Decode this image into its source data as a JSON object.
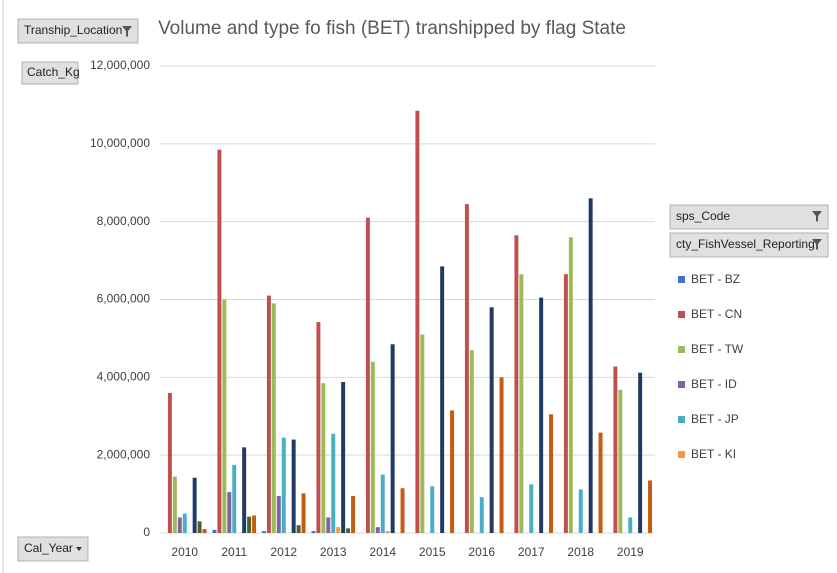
{
  "chart_data": {
    "type": "bar",
    "title": "Volume and type fo fish (BET) transhipped by flag State",
    "categories": [
      "2010",
      "2011",
      "2012",
      "2013",
      "2014",
      "2015",
      "2016",
      "2017",
      "2018",
      "2019"
    ],
    "series": [
      {
        "name": "BET - BZ",
        "color": "#4472c4",
        "values": [
          null,
          80000,
          50000,
          50000,
          null,
          null,
          null,
          null,
          null,
          null
        ]
      },
      {
        "name": "BET - CN",
        "color": "#c0504d",
        "values": [
          3600000,
          9850000,
          6100000,
          5420000,
          8100000,
          10850000,
          8450000,
          7650000,
          6650000,
          4280000
        ]
      },
      {
        "name": "BET - TW",
        "color": "#9bbb59",
        "values": [
          1450000,
          6000000,
          5900000,
          3850000,
          4400000,
          5100000,
          4700000,
          6650000,
          7600000,
          3680000
        ]
      },
      {
        "name": "BET - ID",
        "color": "#8064a2",
        "values": [
          400000,
          1050000,
          950000,
          400000,
          150000,
          null,
          null,
          null,
          null,
          null
        ]
      },
      {
        "name": "BET - JP",
        "color": "#4bacc6",
        "values": [
          500000,
          1750000,
          2450000,
          2550000,
          1500000,
          1200000,
          920000,
          1250000,
          1120000,
          400000
        ]
      },
      {
        "name": "BET - KI",
        "color": "#f79646",
        "values": [
          null,
          null,
          null,
          150000,
          50000,
          null,
          null,
          null,
          null,
          null
        ]
      },
      {
        "color": "#1f3864",
        "values": [
          1420000,
          2200000,
          2400000,
          3880000,
          4850000,
          6850000,
          5800000,
          6050000,
          8600000,
          4120000
        ]
      },
      {
        "color": "#4f6228",
        "values": [
          300000,
          420000,
          200000,
          120000,
          null,
          null,
          null,
          null,
          null,
          null
        ]
      },
      {
        "color": "#c55a11",
        "values": [
          100000,
          450000,
          1020000,
          950000,
          1150000,
          3150000,
          4000000,
          3050000,
          2580000,
          1350000
        ]
      }
    ],
    "ylim": [
      0,
      12000000
    ],
    "yticks": [
      0,
      {
        "value": 2000000,
        "label": "2,000,000"
      },
      {
        "value": 4000000,
        "label": "4,000,000"
      },
      {
        "value": 6000000,
        "label": "6,000,000"
      },
      {
        "value": 8000000,
        "label": "8,000,000"
      },
      {
        "value": 10000000,
        "label": "10,000,000"
      },
      {
        "value": 12000000,
        "label": "12,000,000"
      }
    ],
    "grid": true
  },
  "pivot_fields": {
    "filter": "Tranship_Location",
    "values": "Catch_Kg",
    "axis": "Cal_Year",
    "legend": [
      "sps_Code",
      "cty_FishVessel_Reporting"
    ]
  }
}
